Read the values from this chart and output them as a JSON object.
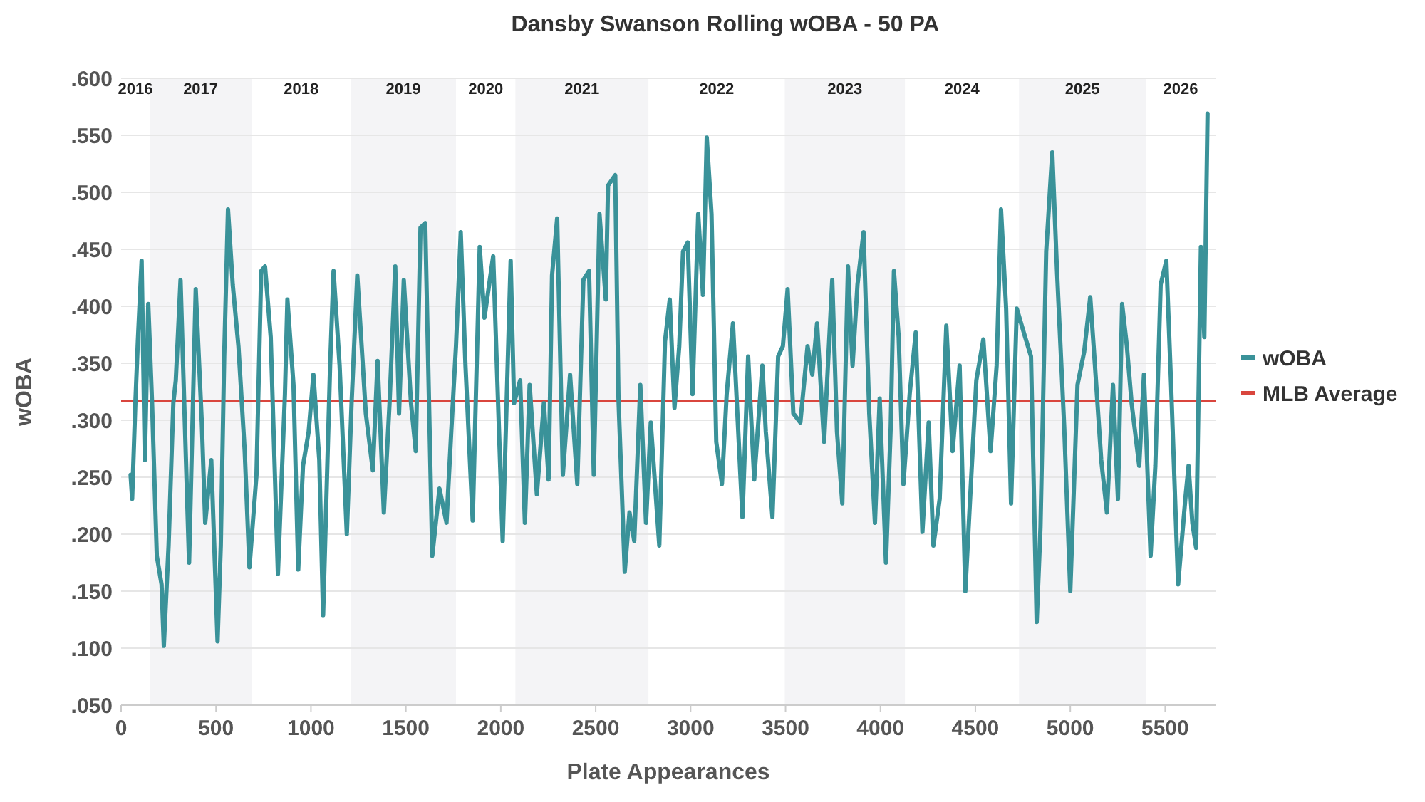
{
  "chart_data": {
    "type": "line",
    "title": "Dansby Swanson Rolling wOBA - 50 PA",
    "xlabel": "Plate Appearances",
    "ylabel": "wOBA",
    "xlim": [
      0,
      5765
    ],
    "xticks": [
      0,
      500,
      1000,
      1500,
      2000,
      2500,
      3000,
      3500,
      4000,
      4500,
      5000,
      5500
    ],
    "ylim": [
      0.05,
      0.6
    ],
    "yticks": [
      {
        "value": 0.05,
        "label": ".050"
      },
      {
        "value": 0.1,
        "label": ".100"
      },
      {
        "value": 0.15,
        "label": ".150"
      },
      {
        "value": 0.2,
        "label": ".200"
      },
      {
        "value": 0.25,
        "label": ".250"
      },
      {
        "value": 0.3,
        "label": ".300"
      },
      {
        "value": 0.35,
        "label": ".350"
      },
      {
        "value": 0.4,
        "label": ".400"
      },
      {
        "value": 0.45,
        "label": ".450"
      },
      {
        "value": 0.5,
        "label": ".500"
      },
      {
        "value": 0.55,
        "label": ".550"
      },
      {
        "value": 0.6,
        "label": ".600"
      }
    ],
    "grid": "y",
    "legend": "right",
    "marker": "none",
    "line_style": "solid",
    "series": [
      {
        "name": "wOBA",
        "color": "#3a9299",
        "x": [
          50,
          58,
          75,
          88,
          108,
          125,
          143,
          163,
          188,
          213,
          225,
          250,
          275,
          288,
          313,
          325,
          358,
          393,
          425,
          443,
          475,
          508,
          525,
          543,
          563,
          588,
          618,
          651,
          676,
          713,
          738,
          758,
          788,
          826,
          863,
          876,
          908,
          933,
          958,
          988,
          1013,
          1044,
          1064,
          1101,
          1119,
          1151,
          1189,
          1214,
          1244,
          1289,
          1326,
          1351,
          1384,
          1414,
          1444,
          1464,
          1489,
          1527,
          1552,
          1577,
          1602,
          1639,
          1677,
          1714,
          1739,
          1764,
          1789,
          1814,
          1852,
          1889,
          1914,
          1960,
          2010,
          2052,
          2070,
          2102,
          2127,
          2152,
          2190,
          2227,
          2252,
          2270,
          2297,
          2327,
          2365,
          2403,
          2435,
          2465,
          2490,
          2520,
          2553,
          2565,
          2603,
          2620,
          2653,
          2678,
          2703,
          2735,
          2765,
          2790,
          2835,
          2865,
          2890,
          2915,
          2940,
          2960,
          2985,
          3010,
          3040,
          3065,
          3085,
          3110,
          3135,
          3165,
          3190,
          3223,
          3273,
          3303,
          3335,
          3378,
          3396,
          3431,
          3461,
          3486,
          3511,
          3541,
          3578,
          3616,
          3641,
          3666,
          3703,
          3746,
          3771,
          3799,
          3829,
          3853,
          3879,
          3911,
          3941,
          3971,
          3996,
          4029,
          4054,
          4071,
          4096,
          4121,
          4154,
          4186,
          4221,
          4254,
          4279,
          4312,
          4347,
          4380,
          4417,
          4447,
          4480,
          4505,
          4542,
          4580,
          4612,
          4635,
          4662,
          4688,
          4718,
          4755,
          4793,
          4823,
          4843,
          4873,
          4905,
          4930,
          4968,
          5000,
          5038,
          5073,
          5105,
          5130,
          5163,
          5193,
          5225,
          5251,
          5273,
          5298,
          5323,
          5363,
          5388,
          5423,
          5448,
          5476,
          5506,
          5531,
          5568,
          5606,
          5623,
          5643,
          5663,
          5688,
          5706,
          5723
        ],
        "values": [
          0.252,
          0.231,
          0.315,
          0.369,
          0.44,
          0.265,
          0.402,
          0.315,
          0.181,
          0.156,
          0.102,
          0.19,
          0.315,
          0.335,
          0.423,
          0.356,
          0.175,
          0.415,
          0.298,
          0.21,
          0.265,
          0.106,
          0.19,
          0.356,
          0.485,
          0.419,
          0.365,
          0.273,
          0.171,
          0.252,
          0.431,
          0.435,
          0.373,
          0.165,
          0.323,
          0.406,
          0.331,
          0.169,
          0.26,
          0.29,
          0.34,
          0.265,
          0.129,
          0.348,
          0.431,
          0.348,
          0.2,
          0.315,
          0.427,
          0.306,
          0.256,
          0.352,
          0.219,
          0.315,
          0.435,
          0.306,
          0.423,
          0.315,
          0.273,
          0.469,
          0.473,
          0.181,
          0.24,
          0.21,
          0.29,
          0.365,
          0.465,
          0.348,
          0.212,
          0.452,
          0.39,
          0.444,
          0.194,
          0.44,
          0.315,
          0.335,
          0.21,
          0.331,
          0.235,
          0.315,
          0.248,
          0.427,
          0.477,
          0.252,
          0.34,
          0.244,
          0.423,
          0.431,
          0.252,
          0.481,
          0.406,
          0.506,
          0.515,
          0.319,
          0.167,
          0.219,
          0.194,
          0.331,
          0.21,
          0.298,
          0.19,
          0.369,
          0.406,
          0.311,
          0.365,
          0.448,
          0.456,
          0.323,
          0.481,
          0.41,
          0.548,
          0.481,
          0.281,
          0.244,
          0.323,
          0.385,
          0.215,
          0.356,
          0.248,
          0.348,
          0.29,
          0.215,
          0.356,
          0.365,
          0.415,
          0.306,
          0.298,
          0.365,
          0.34,
          0.385,
          0.281,
          0.423,
          0.29,
          0.227,
          0.435,
          0.348,
          0.419,
          0.465,
          0.306,
          0.21,
          0.319,
          0.175,
          0.294,
          0.431,
          0.373,
          0.244,
          0.323,
          0.377,
          0.202,
          0.298,
          0.19,
          0.231,
          0.383,
          0.273,
          0.348,
          0.15,
          0.256,
          0.335,
          0.371,
          0.273,
          0.348,
          0.485,
          0.398,
          0.227,
          0.398,
          0.377,
          0.356,
          0.123,
          0.206,
          0.448,
          0.535,
          0.431,
          0.294,
          0.15,
          0.331,
          0.36,
          0.408,
          0.348,
          0.265,
          0.219,
          0.331,
          0.231,
          0.402,
          0.365,
          0.315,
          0.26,
          0.34,
          0.181,
          0.26,
          0.419,
          0.44,
          0.331,
          0.156,
          0.231,
          0.26,
          0.21,
          0.188,
          0.452,
          0.373,
          0.569
        ]
      }
    ],
    "ref_lines": [
      {
        "axis": "y",
        "value": 0.317,
        "label": "MLB Average",
        "color": "#d9463e"
      }
    ],
    "bands": [
      {
        "axis": "x",
        "from": 150,
        "to": 688,
        "label": "2017",
        "color": "#f4f4f6"
      },
      {
        "axis": "x",
        "from": 1209,
        "to": 1764,
        "label": "2019",
        "color": "#f4f4f6"
      },
      {
        "axis": "x",
        "from": 2077,
        "to": 2778,
        "label": "2021",
        "color": "#f4f4f6"
      },
      {
        "axis": "x",
        "from": 3496,
        "to": 4129,
        "label": "2023",
        "color": "#f4f4f6"
      },
      {
        "axis": "x",
        "from": 4730,
        "to": 5398,
        "label": "2025",
        "color": "#f4f4f6"
      }
    ],
    "annotations": [
      "2016",
      "2018",
      "2020",
      "2022",
      "2024",
      "2026"
    ]
  }
}
